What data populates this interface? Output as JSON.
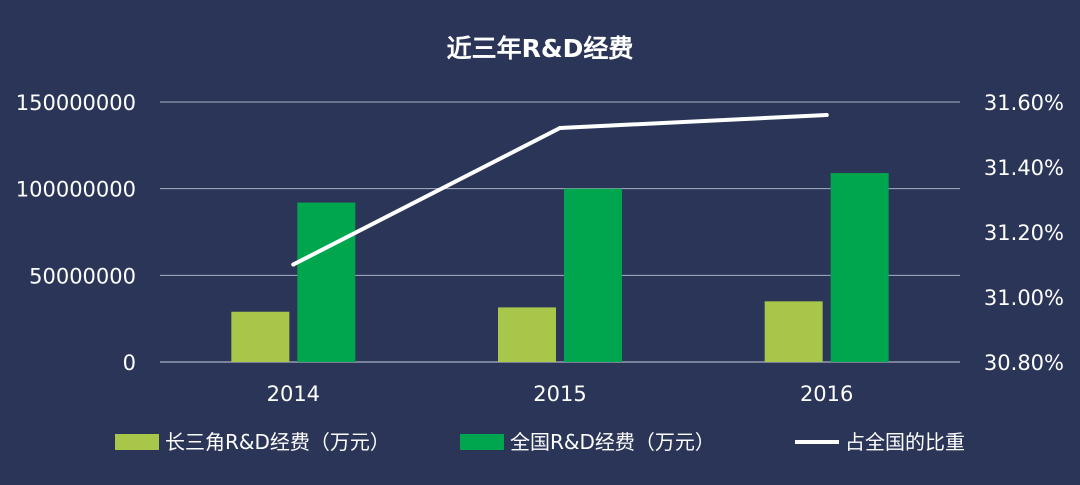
{
  "chart_data": {
    "type": "bar",
    "title": "近三年R&D经费",
    "categories": [
      "2014",
      "2015",
      "2016"
    ],
    "y_left": {
      "min": 0,
      "max": 150000000,
      "ticks": [
        0,
        50000000,
        100000000,
        150000000
      ],
      "tick_labels": [
        "0",
        "50000000",
        "100000000",
        "150000000"
      ]
    },
    "y_right": {
      "min": 30.8,
      "max": 31.6,
      "ticks": [
        30.8,
        31.0,
        31.2,
        31.4,
        31.6
      ],
      "tick_labels": [
        "30.80%",
        "31.00%",
        "31.20%",
        "31.40%",
        "31.60%"
      ]
    },
    "grid": true,
    "legend_position": "bottom",
    "series": [
      {
        "name": "长三角R&D经费（万元）",
        "type": "bar",
        "axis": "left",
        "color": "#a8c64a",
        "values": [
          29000000,
          31500000,
          35000000
        ]
      },
      {
        "name": "全国R&D经费（万元）",
        "type": "bar",
        "axis": "left",
        "color": "#00a64e",
        "values": [
          92000000,
          100000000,
          109000000
        ]
      },
      {
        "name": "占全国的比重",
        "type": "line",
        "axis": "right",
        "color": "#ffffff",
        "values": [
          31.1,
          31.52,
          31.56
        ]
      }
    ]
  }
}
